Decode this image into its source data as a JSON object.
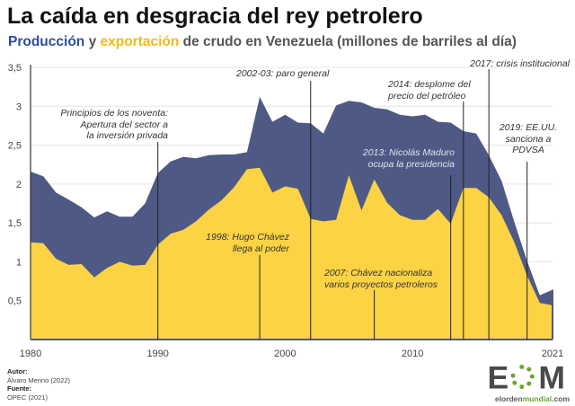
{
  "header": {
    "title": "La caída en desgracia del rey petrolero",
    "subtitle_production": "Producción",
    "subtitle_y": " y ",
    "subtitle_export": "exportación",
    "subtitle_rest": " de crudo en Venezuela (millones de barriles al día)"
  },
  "colors": {
    "production": "#4e5a85",
    "export": "#fcd344",
    "production_text": "#2f4da0",
    "export_text": "#f4b917"
  },
  "chart_data": {
    "type": "area",
    "title": "La caída en desgracia del rey petrolero",
    "xlabel": "",
    "ylabel": "",
    "xlim": [
      1980,
      2021
    ],
    "ylim": [
      0,
      3.5
    ],
    "grid": true,
    "legend": "subtitle",
    "x_ticks": [
      "1980",
      "1990",
      "2000",
      "2010",
      "2021"
    ],
    "y_ticks": [
      "0,5",
      "1",
      "1,5",
      "2",
      "2,5",
      "3",
      "3,5"
    ],
    "x": [
      1980,
      1981,
      1982,
      1983,
      1984,
      1985,
      1986,
      1987,
      1988,
      1989,
      1990,
      1991,
      1992,
      1993,
      1994,
      1995,
      1996,
      1997,
      1998,
      1999,
      2000,
      2001,
      2002,
      2003,
      2004,
      2005,
      2006,
      2007,
      2008,
      2009,
      2010,
      2011,
      2012,
      2013,
      2014,
      2015,
      2016,
      2017,
      2018,
      2019,
      2020,
      2021
    ],
    "series": [
      {
        "name": "Producción",
        "values": [
          2.16,
          2.1,
          1.89,
          1.8,
          1.7,
          1.57,
          1.65,
          1.58,
          1.58,
          1.75,
          2.14,
          2.29,
          2.35,
          2.33,
          2.37,
          2.38,
          2.38,
          2.41,
          3.12,
          2.8,
          2.89,
          2.79,
          2.78,
          2.65,
          3.01,
          3.07,
          3.05,
          2.98,
          2.96,
          2.89,
          2.87,
          2.89,
          2.8,
          2.79,
          2.68,
          2.65,
          2.37,
          2.04,
          1.51,
          1.01,
          0.57,
          0.64
        ]
      },
      {
        "name": "exportación",
        "values": [
          1.25,
          1.24,
          1.04,
          0.96,
          0.97,
          0.8,
          0.92,
          1.0,
          0.95,
          0.96,
          1.22,
          1.36,
          1.41,
          1.52,
          1.67,
          1.79,
          1.96,
          2.19,
          2.21,
          1.89,
          1.97,
          1.94,
          1.55,
          1.52,
          1.54,
          2.11,
          1.66,
          2.06,
          1.76,
          1.6,
          1.54,
          1.54,
          1.68,
          1.49,
          1.95,
          1.95,
          1.83,
          1.6,
          1.25,
          0.82,
          0.47,
          0.44
        ]
      }
    ],
    "annotations": [
      {
        "year": 1990,
        "lines": [
          "Principios de los noventa:",
          "Apertura del sector a",
          "la inversión privada"
        ]
      },
      {
        "year": 2002,
        "lines": [
          "2002-03: paro general"
        ]
      },
      {
        "year": 1998,
        "lines": [
          "1998: Hugo Chávez",
          "llega al poder"
        ]
      },
      {
        "year": 2007,
        "lines": [
          "2007: Chávez nacionaliza",
          "varios proyectos petroleros"
        ]
      },
      {
        "year": 2013,
        "lines": [
          "2013: Nicolás Maduro",
          "ocupa la presidencia"
        ]
      },
      {
        "year": 2014,
        "lines": [
          "2014: desplome del",
          "precio del petróleo"
        ]
      },
      {
        "year": 2016,
        "lines": [
          "2017: crisis institucional"
        ]
      },
      {
        "year": 2019,
        "lines": [
          "2019: EE.UU.",
          "sanciona a",
          "PDVSA"
        ]
      }
    ]
  },
  "footer": {
    "author_label": "Autor:",
    "author": "Álvaro Merino (2022)",
    "source_label": "Fuente:",
    "source": "OPEC (2021)",
    "logo_letters": "EOM",
    "logo_site_a": "elorden",
    "logo_site_b": "mundial",
    "logo_site_c": ".com"
  }
}
